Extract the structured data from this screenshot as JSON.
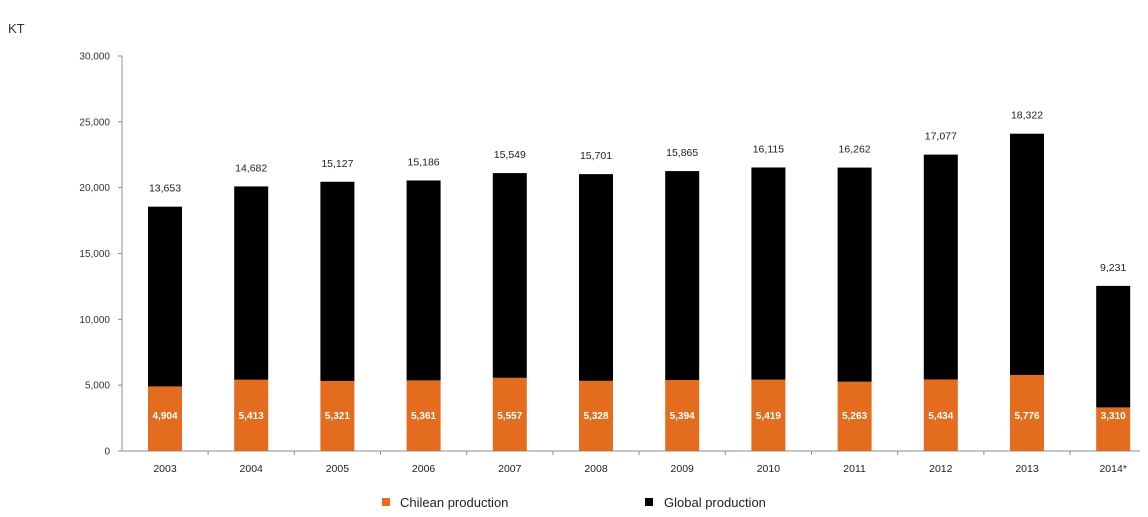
{
  "chart_data": {
    "type": "bar",
    "stacked": true,
    "unit_label": "KT",
    "ylim": [
      0,
      30000
    ],
    "yticks": [
      0,
      5000,
      10000,
      15000,
      20000,
      25000,
      30000
    ],
    "ytick_labels": [
      "0",
      "5,000",
      "10,000",
      "15,000",
      "20,000",
      "25,000",
      "30,000"
    ],
    "categories": [
      "2003",
      "2004",
      "2005",
      "2006",
      "2007",
      "2008",
      "2009",
      "2010",
      "2011",
      "2012",
      "2013",
      "2014*"
    ],
    "series": [
      {
        "name": "Chilean production",
        "color": "#e36c1e",
        "values": [
          4904,
          5413,
          5321,
          5361,
          5557,
          5328,
          5394,
          5419,
          5263,
          5434,
          5776,
          3310
        ],
        "labels": [
          "4,904",
          "5,413",
          "5,321",
          "5,361",
          "5,557",
          "5,328",
          "5,394",
          "5,419",
          "5,263",
          "5,434",
          "5,776",
          "3,310"
        ]
      },
      {
        "name": "Global production",
        "color": "#000000",
        "values": [
          13653,
          14682,
          15127,
          15186,
          15549,
          15701,
          15865,
          16115,
          16262,
          17077,
          18322,
          9231
        ],
        "labels": [
          "13,653",
          "14,682",
          "15,127",
          "15,186",
          "15,549",
          "15,701",
          "15,865",
          "16,115",
          "16,262",
          "17,077",
          "18,322",
          "9,231"
        ]
      }
    ],
    "grid": false,
    "legend_position": "bottom-center"
  }
}
